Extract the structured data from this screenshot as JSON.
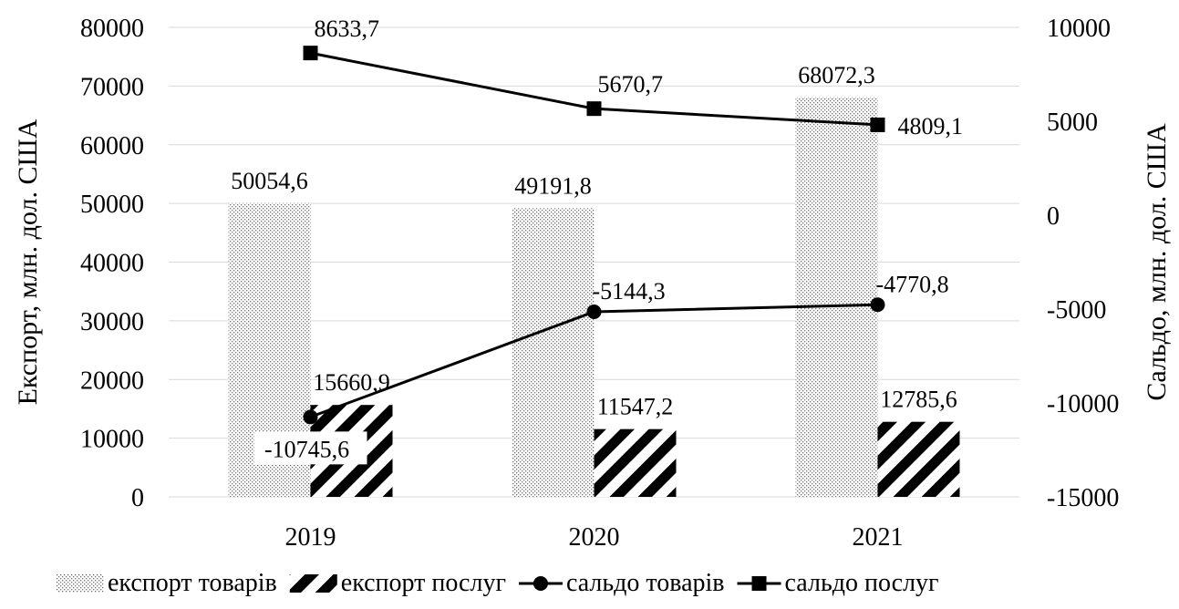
{
  "chart_data": {
    "type": "bar",
    "categories": [
      "2019",
      "2020",
      "2021"
    ],
    "title": "",
    "xlabel": "",
    "ylabel": "Експорт, млн. дол. США",
    "y2label": "Сальдо, млн. дол. США",
    "ylim": [
      0,
      80000
    ],
    "y2lim": [
      -15000,
      10000
    ],
    "y_ticks": [
      "0",
      "10000",
      "20000",
      "30000",
      "40000",
      "50000",
      "60000",
      "70000",
      "80000"
    ],
    "y2_ticks": [
      "-15000",
      "-10000",
      "-5000",
      "0",
      "5000",
      "10000"
    ],
    "grid": true,
    "legend_position": "bottom",
    "series": [
      {
        "name": "експорт товарів",
        "kind": "bar",
        "axis": "left",
        "pattern": "dots",
        "values": [
          50054.6,
          49191.8,
          68072.3
        ],
        "labels": [
          "50054,6",
          "49191,8",
          "68072,3"
        ]
      },
      {
        "name": "експорт послуг",
        "kind": "bar",
        "axis": "left",
        "pattern": "diagonal-stripes",
        "values": [
          15660.9,
          11547.2,
          12785.6
        ],
        "labels": [
          "15660,9",
          "11547,2",
          "12785,6"
        ]
      },
      {
        "name": "сальдо товарів",
        "kind": "line",
        "axis": "right",
        "marker": "circle",
        "values": [
          -10745.6,
          -5144.3,
          -4770.8
        ],
        "labels": [
          "-10745,6",
          "-5144,3",
          "-4770,8"
        ]
      },
      {
        "name": "сальдо послуг",
        "kind": "line",
        "axis": "right",
        "marker": "square",
        "values": [
          8633.7,
          5670.7,
          4809.1
        ],
        "labels": [
          "8633,7",
          "5670,7",
          "4809,1"
        ]
      }
    ]
  }
}
